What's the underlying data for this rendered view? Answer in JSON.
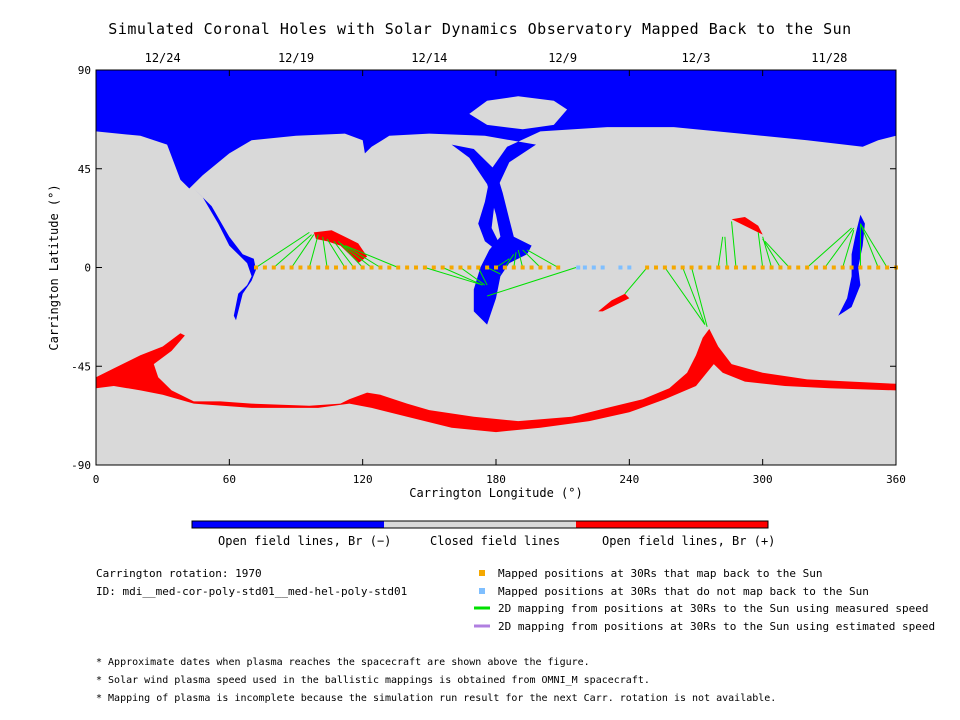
{
  "title": "Simulated Coronal Holes with Solar Dynamics Observatory Mapped Back to the Sun",
  "colors": {
    "open_negative": "#0000ff",
    "closed": "#d9d9d9",
    "open_positive": "#ff0000",
    "mapped_back": "#f5a800",
    "not_mapped": "#7fbfff",
    "measured_speed": "#00e000",
    "estimated_speed": "#b07fe0"
  },
  "top_dates": [
    {
      "label": "12/24",
      "lon": 30
    },
    {
      "label": "12/19",
      "lon": 90
    },
    {
      "label": "12/14",
      "lon": 150
    },
    {
      "label": "12/9",
      "lon": 210
    },
    {
      "label": "12/3",
      "lon": 270
    },
    {
      "label": "11/28",
      "lon": 330
    }
  ],
  "colorbar": {
    "labels": [
      "Open field lines, Br (−)",
      "Closed field lines",
      "Open field lines, Br (+)"
    ]
  },
  "info": {
    "rotation": "Carrington rotation: 1970",
    "id": "ID: mdi__med-cor-poly-std01__med-hel-poly-std01"
  },
  "legend": [
    {
      "label": "Mapped positions at 30Rs that map back to the Sun",
      "type": "square",
      "color": "#f5a800"
    },
    {
      "label": "Mapped positions at 30Rs that do not map back to the Sun",
      "type": "square",
      "color": "#7fbfff"
    },
    {
      "label": "2D mapping from positions at 30Rs to the Sun using measured speed",
      "type": "line",
      "color": "#00e000"
    },
    {
      "label": "2D mapping from positions at 30Rs to the Sun using estimated speed",
      "type": "line",
      "color": "#b07fe0"
    }
  ],
  "notes": [
    "* Approximate dates when plasma reaches the spacecraft are shown above the figure.",
    "* Solar wind plasma speed used in the ballistic mappings is obtained from OMNI_M spacecraft.",
    "* Mapping of plasma is incomplete because the simulation run result for the next Carr. rotation is not available."
  ],
  "chart_data": {
    "type": "scatter",
    "xlabel": "Carrington Longitude (°)",
    "ylabel": "Carrington Latitude (°)",
    "xlim": [
      0,
      360
    ],
    "ylim": [
      -90,
      90
    ],
    "xticks": [
      0,
      60,
      120,
      180,
      240,
      300,
      360
    ],
    "yticks": [
      -90,
      -45,
      0,
      45,
      90
    ],
    "mapped_positions_lon": [
      72,
      76,
      80,
      84,
      88,
      92,
      96,
      100,
      104,
      108,
      112,
      116,
      120,
      124,
      128,
      132,
      136,
      140,
      144,
      148,
      152,
      156,
      160,
      164,
      168,
      172,
      176,
      180,
      184,
      188,
      192,
      196,
      200,
      204,
      208,
      248,
      252,
      256,
      260,
      264,
      268,
      272,
      276,
      280,
      284,
      288,
      292,
      296,
      300,
      304,
      308,
      312,
      316,
      320,
      324,
      328,
      332,
      336,
      340,
      344,
      348,
      352,
      356,
      360
    ],
    "unmapped_positions_lon": [
      217,
      220,
      224,
      228,
      236,
      240
    ],
    "mappings": [
      {
        "from": [
          72,
          0
        ],
        "to": [
          96,
          16
        ]
      },
      {
        "from": [
          80,
          0
        ],
        "to": [
          97,
          15
        ]
      },
      {
        "from": [
          88,
          0
        ],
        "to": [
          98,
          15
        ]
      },
      {
        "from": [
          96,
          0
        ],
        "to": [
          100,
          15
        ]
      },
      {
        "from": [
          104,
          0
        ],
        "to": [
          102,
          14
        ]
      },
      {
        "from": [
          112,
          0
        ],
        "to": [
          104,
          13
        ]
      },
      {
        "from": [
          116,
          0
        ],
        "to": [
          107,
          12
        ]
      },
      {
        "from": [
          120,
          0
        ],
        "to": [
          109,
          12
        ]
      },
      {
        "from": [
          124,
          0
        ],
        "to": [
          110,
          11
        ]
      },
      {
        "from": [
          128,
          0
        ],
        "to": [
          112,
          10
        ]
      },
      {
        "from": [
          136,
          0
        ],
        "to": [
          112,
          10
        ]
      },
      {
        "from": [
          148,
          0
        ],
        "to": [
          174,
          -8
        ]
      },
      {
        "from": [
          156,
          0
        ],
        "to": [
          174,
          -8
        ]
      },
      {
        "from": [
          164,
          0
        ],
        "to": [
          175,
          -8
        ]
      },
      {
        "from": [
          172,
          0
        ],
        "to": [
          176,
          -8
        ]
      },
      {
        "from": [
          176,
          0
        ],
        "to": [
          182,
          -3
        ]
      },
      {
        "from": [
          180,
          0
        ],
        "to": [
          186,
          4
        ]
      },
      {
        "from": [
          184,
          0
        ],
        "to": [
          188,
          6
        ]
      },
      {
        "from": [
          188,
          0
        ],
        "to": [
          189,
          7
        ]
      },
      {
        "from": [
          192,
          0
        ],
        "to": [
          190,
          8
        ]
      },
      {
        "from": [
          200,
          0
        ],
        "to": [
          192,
          8
        ]
      },
      {
        "from": [
          208,
          0
        ],
        "to": [
          194,
          8
        ]
      },
      {
        "from": [
          216,
          0
        ],
        "to": [
          176,
          -13
        ]
      },
      {
        "from": [
          248,
          0
        ],
        "to": [
          238,
          -12
        ]
      },
      {
        "from": [
          256,
          0
        ],
        "to": [
          274,
          -26
        ]
      },
      {
        "from": [
          264,
          0
        ],
        "to": [
          274,
          -26
        ]
      },
      {
        "from": [
          268,
          0
        ],
        "to": [
          275,
          -27
        ]
      },
      {
        "from": [
          280,
          0
        ],
        "to": [
          282,
          14
        ]
      },
      {
        "from": [
          284,
          0
        ],
        "to": [
          283,
          14
        ]
      },
      {
        "from": [
          288,
          0
        ],
        "to": [
          286,
          21
        ]
      },
      {
        "from": [
          300,
          0
        ],
        "to": [
          298,
          16
        ]
      },
      {
        "from": [
          304,
          0
        ],
        "to": [
          300,
          14
        ]
      },
      {
        "from": [
          308,
          0
        ],
        "to": [
          300,
          13
        ]
      },
      {
        "from": [
          312,
          0
        ],
        "to": [
          301,
          12
        ]
      },
      {
        "from": [
          320,
          0
        ],
        "to": [
          340,
          18
        ]
      },
      {
        "from": [
          328,
          0
        ],
        "to": [
          341,
          18
        ]
      },
      {
        "from": [
          336,
          0
        ],
        "to": [
          341,
          17
        ]
      },
      {
        "from": [
          344,
          0
        ],
        "to": [
          344,
          20
        ]
      },
      {
        "from": [
          352,
          0
        ],
        "to": [
          344,
          20
        ]
      },
      {
        "from": [
          356,
          0
        ],
        "to": [
          344,
          20
        ]
      }
    ]
  }
}
